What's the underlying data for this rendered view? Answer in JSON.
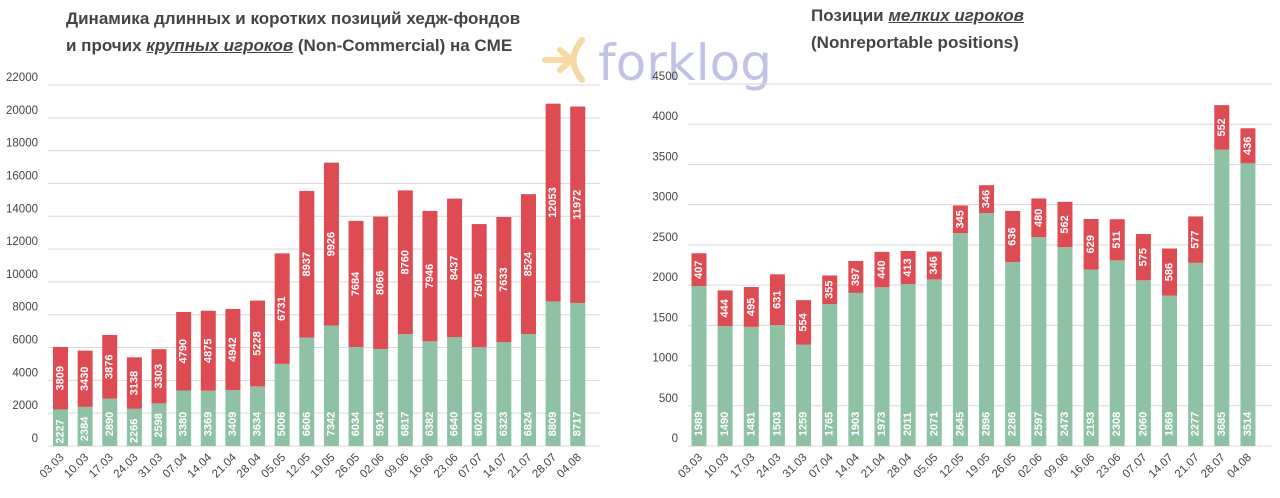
{
  "logo": {
    "text": "forklog",
    "brand_color": "#9b9bd8",
    "arrow_color": "#f5c06b"
  },
  "colors": {
    "long": "#8fc1a4",
    "short": "#dd4c52",
    "grid": "#d9d9d9",
    "text": "#444444"
  },
  "chart_data": [
    {
      "type": "bar",
      "stacked": true,
      "title_line1": "Динамика длинных и коротких позиций хедж-фондов",
      "title_line2_pre": "и прочих ",
      "title_line2_em": "крупных игроков",
      "title_line2_post": " (Non-Commercial) на CME",
      "ylim": [
        0,
        22000
      ],
      "yticks": [
        0,
        2000,
        4000,
        6000,
        8000,
        10000,
        12000,
        14000,
        16000,
        18000,
        20000,
        22000
      ],
      "categories": [
        "03.03",
        "10.03",
        "17.03",
        "24.03",
        "31.03",
        "07.04",
        "14.04",
        "21.04",
        "28.04",
        "05.05",
        "12.05",
        "19.05",
        "26.05",
        "02.06",
        "09.06",
        "16.06",
        "23.06",
        "07.07",
        "14.07",
        "21.07",
        "28.07",
        "04.08"
      ],
      "series": [
        {
          "key": "long",
          "values": [
            2227,
            2384,
            2890,
            2266,
            2598,
            3380,
            3369,
            3409,
            3634,
            5006,
            6606,
            7342,
            6034,
            5914,
            6817,
            6382,
            6640,
            6020,
            6323,
            6824,
            8809,
            8717
          ]
        },
        {
          "key": "short",
          "values": [
            3809,
            3430,
            3876,
            3138,
            3303,
            4790,
            4875,
            4942,
            5228,
            6731,
            8937,
            9926,
            7684,
            8066,
            8760,
            7946,
            8437,
            7505,
            7633,
            8524,
            12053,
            11972
          ]
        }
      ],
      "grid": true
    },
    {
      "type": "bar",
      "stacked": true,
      "title_line1_pre": "Позиции ",
      "title_line1_em": "мелких игроков",
      "title_line2": "(Nonreportable positions)",
      "ylim": [
        0,
        4500
      ],
      "yticks": [
        0,
        500,
        1000,
        1500,
        2000,
        2500,
        3000,
        3500,
        4000,
        4500
      ],
      "categories": [
        "03.03",
        "10.03",
        "17.03",
        "24.03",
        "31.03",
        "07.04",
        "14.04",
        "21.04",
        "28.04",
        "05.05",
        "12.05",
        "19.05",
        "26.05",
        "02.06",
        "09.06",
        "16.06",
        "23.06",
        "07.07",
        "14.07",
        "21.07",
        "28.07",
        "04.08"
      ],
      "series": [
        {
          "key": "long",
          "values": [
            1989,
            1490,
            1481,
            1503,
            1259,
            1765,
            1903,
            1973,
            2011,
            2071,
            2645,
            2896,
            2286,
            2597,
            2473,
            2193,
            2308,
            2060,
            1869,
            2277,
            3685,
            3514
          ]
        },
        {
          "key": "short",
          "values": [
            407,
            444,
            495,
            631,
            554,
            355,
            397,
            440,
            413,
            346,
            345,
            346,
            636,
            480,
            562,
            629,
            511,
            575,
            586,
            577,
            552,
            436
          ]
        }
      ],
      "grid": true
    }
  ]
}
